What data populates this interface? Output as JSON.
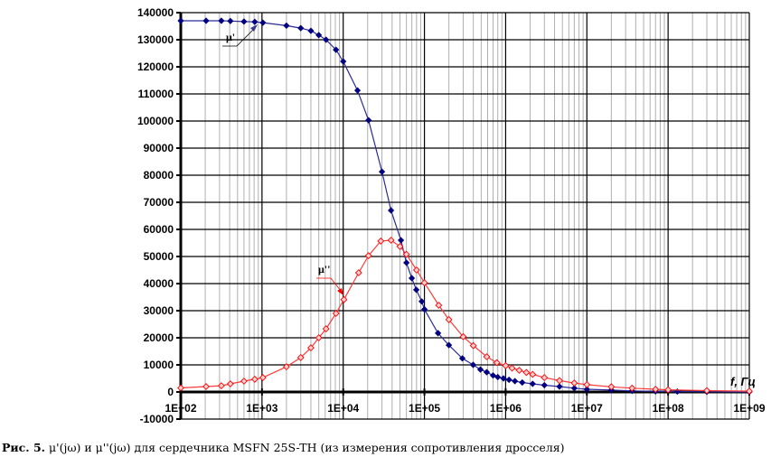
{
  "chart_data": {
    "type": "line",
    "title": "",
    "xlabel": "f, Гц",
    "ylabel": "",
    "xscale": "log",
    "xlim": [
      100,
      1000000000
    ],
    "ylim": [
      -10000,
      140000
    ],
    "grid": true,
    "x_tick_labels": [
      "1E+02",
      "1E+03",
      "1E+04",
      "1E+05",
      "1E+06",
      "1E+07",
      "1E+08",
      "1E+09"
    ],
    "y_tick_labels": [
      "140000",
      "130000",
      "120000",
      "110000",
      "100000",
      "90000",
      "80000",
      "70000",
      "60000",
      "50000",
      "40000",
      "30000",
      "20000",
      "10000",
      "0",
      "-10000"
    ],
    "series": [
      {
        "name": "μ'",
        "color": "#000080",
        "marker": "filled-diamond",
        "x": [
          100,
          205,
          316,
          408,
          600,
          815,
          1026,
          2000,
          3000,
          4000,
          5000,
          6150,
          8150,
          10000,
          15000,
          20500,
          30000,
          38800,
          51400,
          60000,
          69900,
          79400,
          92700,
          100000,
          147000,
          200000,
          293000,
          398000,
          489000,
          585000,
          700000,
          800000,
          940000,
          1100000,
          1300000,
          1600000,
          2150000,
          3000000,
          4600000,
          7000000,
          10000000,
          20000000,
          36000000,
          70000000,
          130000000,
          300000000,
          1000000000
        ],
        "y": [
          137000,
          137000,
          137000,
          136900,
          136700,
          136600,
          136300,
          135200,
          134300,
          133300,
          131700,
          130000,
          126300,
          122000,
          111300,
          100300,
          81300,
          67000,
          56000,
          47700,
          42000,
          37700,
          33400,
          30500,
          21700,
          17300,
          12400,
          10000,
          8300,
          7300,
          6100,
          5500,
          5000,
          4500,
          4000,
          3500,
          3000,
          2500,
          2000,
          1400,
          1000,
          700,
          400,
          250,
          150,
          60,
          0
        ]
      },
      {
        "name": "μ''",
        "color": "#ff0000",
        "marker": "open-diamond",
        "x": [
          100,
          205,
          316,
          408,
          600,
          815,
          1026,
          2000,
          3000,
          4000,
          5000,
          6150,
          8150,
          10200,
          15500,
          20500,
          29000,
          38800,
          50000,
          60000,
          80000,
          100000,
          150000,
          200000,
          300000,
          400000,
          585000,
          780000,
          1000000,
          1200000,
          1470000,
          1800000,
          2150000,
          3000000,
          4600000,
          7000000,
          10000000,
          20000000,
          36000000,
          70000000,
          100000000,
          300000000,
          1000000000
        ],
        "y": [
          1500,
          2000,
          2300,
          3000,
          4000,
          4700,
          5300,
          9300,
          12700,
          16300,
          20000,
          23300,
          29000,
          34100,
          44000,
          50300,
          55700,
          56000,
          53700,
          50800,
          45000,
          40300,
          32000,
          26700,
          20400,
          17100,
          13000,
          10800,
          9700,
          8800,
          8000,
          7200,
          6500,
          5300,
          4200,
          3300,
          2700,
          1900,
          1400,
          1000,
          800,
          500,
          300
        ]
      }
    ],
    "annotations": [
      "μ'",
      "μ''"
    ]
  },
  "caption": {
    "label": "Рис. 5.",
    "text": " μ'(jω) и μ''(jω) для сердечника MSFN 25S-TH (из измерения сопротивления дросселя)"
  }
}
